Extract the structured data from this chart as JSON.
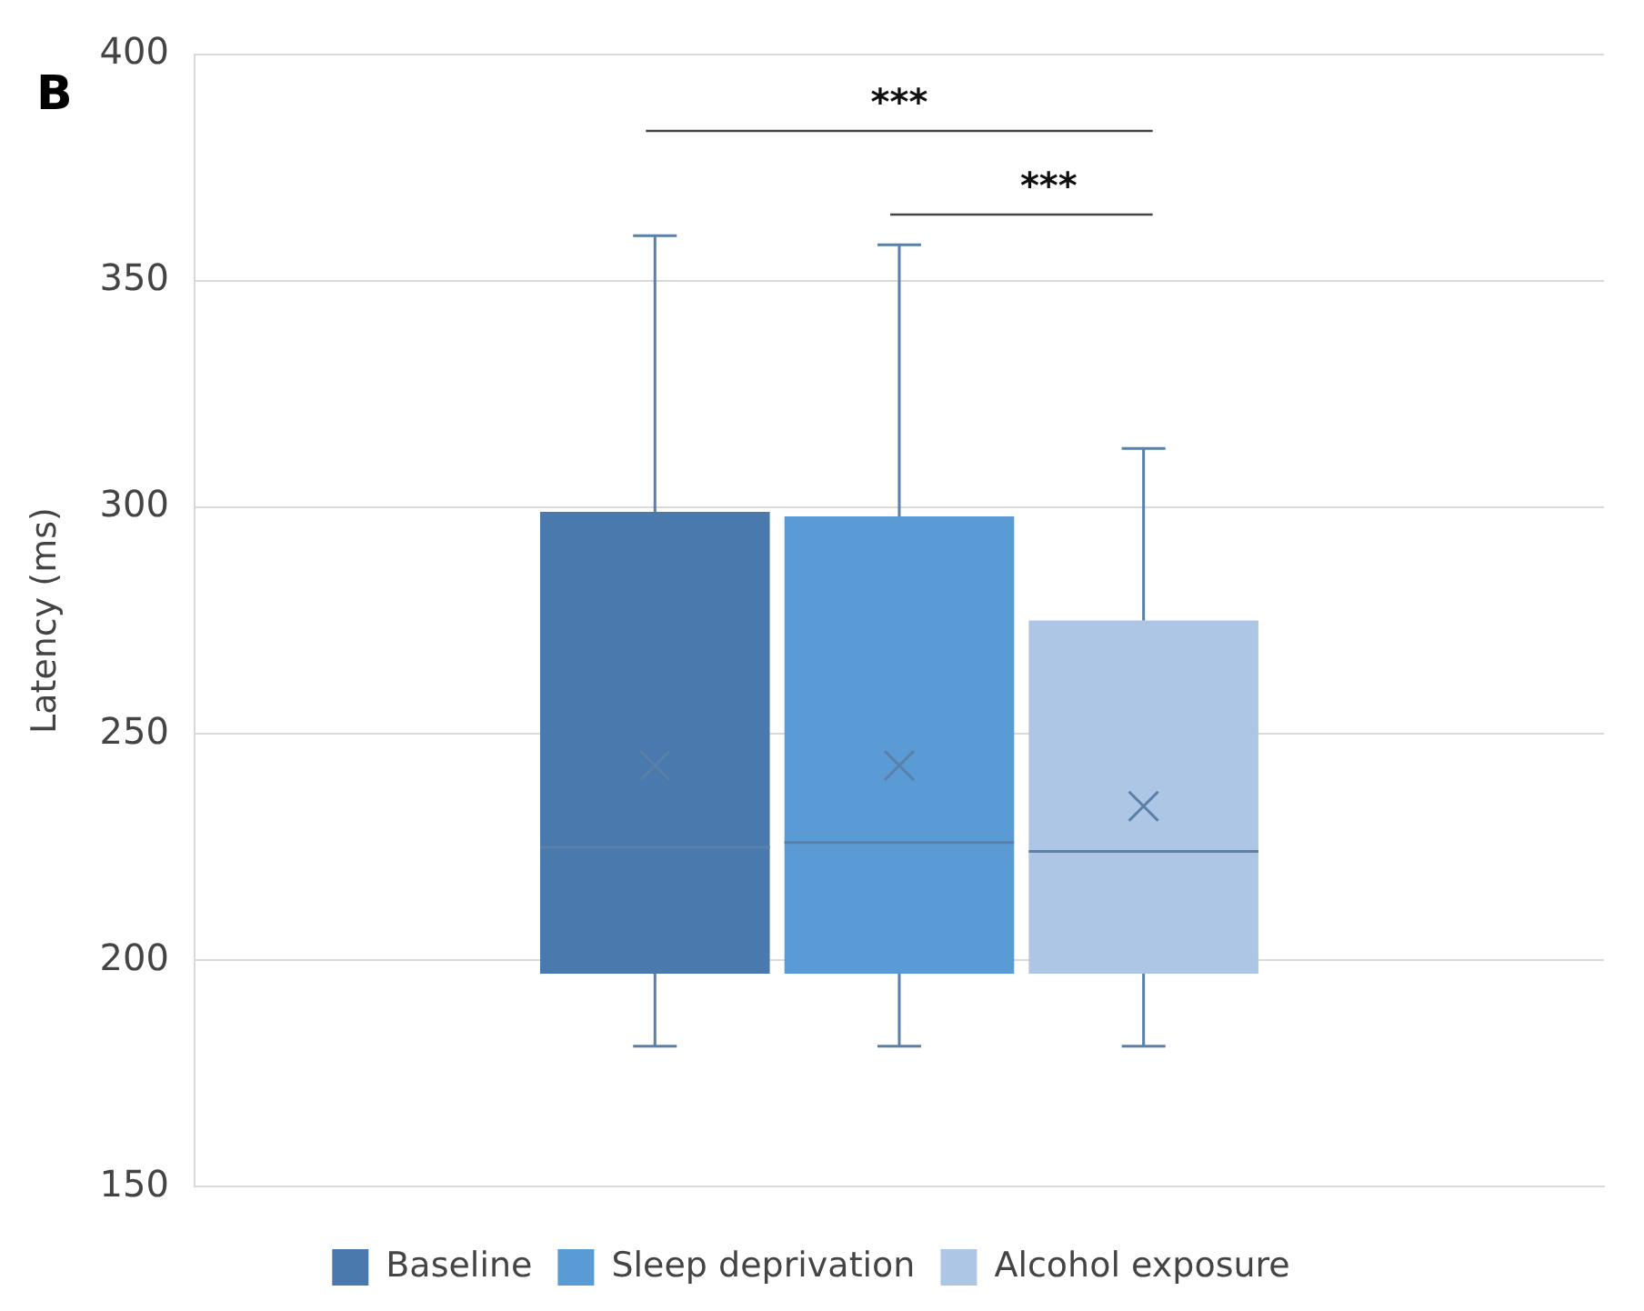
{
  "chart_data": {
    "type": "box",
    "title": "B",
    "ylabel": "Latency (ms)",
    "categories": [
      null
    ],
    "series": [
      {
        "name": "Baseline",
        "color": "#4a7aad",
        "boxes": [
          {
            "low": 181,
            "q1": 197,
            "median": 225,
            "q3": 299,
            "high": 360,
            "mean": 243
          }
        ]
      },
      {
        "name": "Sleep deprivation",
        "color": "#5b9bd5",
        "boxes": [
          {
            "low": 181,
            "q1": 197,
            "median": 226,
            "q3": 298,
            "high": 358,
            "mean": 243
          }
        ]
      },
      {
        "name": "Alcohol exposure",
        "color": "#adc6e5",
        "boxes": [
          {
            "low": 181,
            "q1": 197,
            "median": 224,
            "q3": 275,
            "high": 313,
            "mean": 234
          }
        ]
      }
    ],
    "ylim": [
      150,
      400
    ],
    "yticks": [
      150,
      200,
      250,
      300,
      350,
      400
    ],
    "grid": "y",
    "legend": "bottom",
    "marker": "cross",
    "annotations": [
      "***",
      "***"
    ]
  }
}
